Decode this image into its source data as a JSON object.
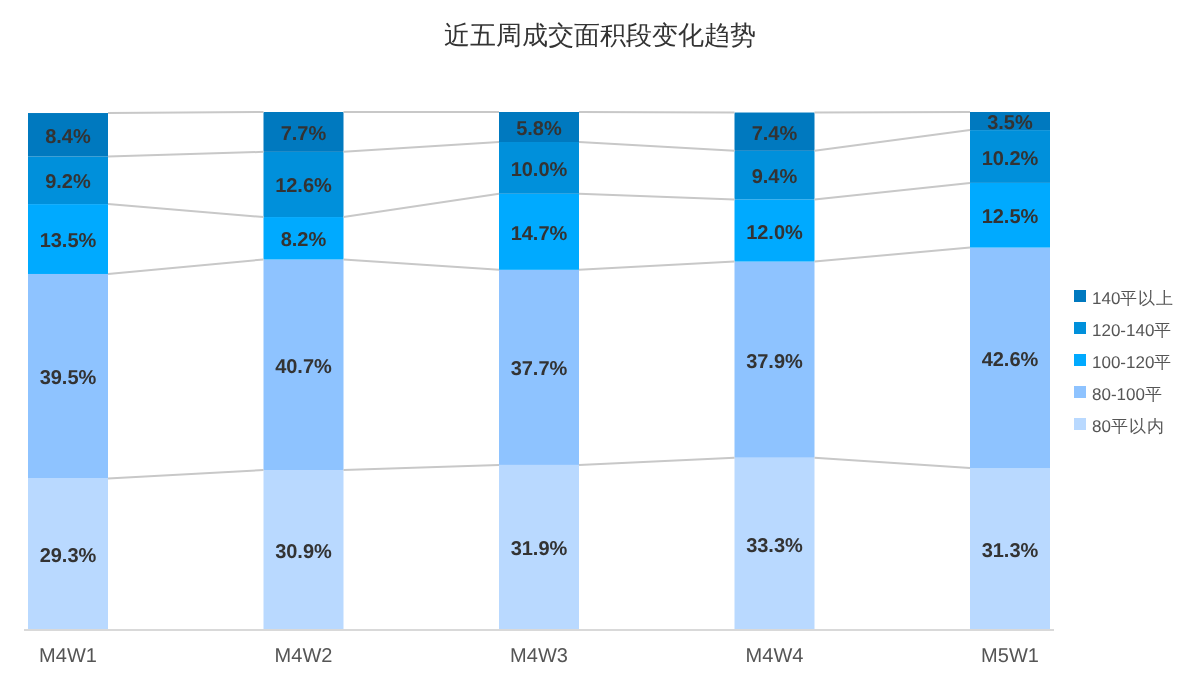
{
  "chart_data": {
    "type": "bar",
    "title": "近五周成交面积段变化趋势",
    "stacked": true,
    "legend": "right",
    "categories": [
      "M4W1",
      "M4W2",
      "M4W3",
      "M4W4",
      "M5W1"
    ],
    "series": [
      {
        "name": "80平以内",
        "color": "#b9d9ff",
        "values": [
          29.3,
          30.9,
          31.9,
          33.3,
          31.3
        ],
        "value_labels": [
          "29.3%",
          "30.9%",
          "31.9%",
          "33.3%",
          "31.3%"
        ]
      },
      {
        "name": "80-100平",
        "color": "#8ec3ff",
        "values": [
          39.5,
          40.7,
          37.7,
          37.9,
          42.6
        ],
        "value_labels": [
          "39.5%",
          "40.7%",
          "37.7%",
          "37.9%",
          "42.6%"
        ]
      },
      {
        "name": "100-120平",
        "color": "#00aaff",
        "values": [
          13.5,
          8.2,
          14.7,
          12.0,
          12.5
        ],
        "value_labels": [
          "13.5%",
          "8.2%",
          "14.7%",
          "12.0%",
          "12.5%"
        ]
      },
      {
        "name": "120-140平",
        "color": "#0090db",
        "values": [
          9.2,
          12.6,
          10.0,
          9.4,
          10.2
        ],
        "value_labels": [
          "9.2%",
          "12.6%",
          "10.0%",
          "9.4%",
          "10.2%"
        ]
      },
      {
        "name": "140平以上",
        "color": "#0079bf",
        "values": [
          8.4,
          7.7,
          5.8,
          7.4,
          3.5
        ],
        "value_labels": [
          "8.4%",
          "7.7%",
          "5.8%",
          "7.4%",
          "3.5%"
        ]
      }
    ]
  }
}
